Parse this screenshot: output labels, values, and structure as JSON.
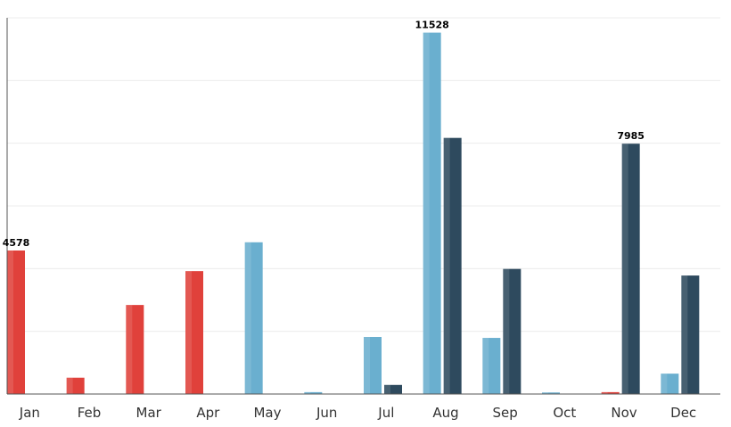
{
  "chart_data": {
    "type": "bar",
    "categories": [
      "Jan",
      "Feb",
      "Mar",
      "Apr",
      "May",
      "Jun",
      "Jul",
      "Aug",
      "Sep",
      "Oct",
      "Nov",
      "Dec"
    ],
    "series": [
      {
        "color": "#e0413b",
        "values": [
          4578,
          520,
          2840,
          3920,
          0,
          0,
          0,
          0,
          0,
          0,
          60,
          0
        ]
      },
      {
        "color": "#6aafcf",
        "values": [
          0,
          0,
          0,
          0,
          4840,
          60,
          1820,
          11528,
          1790,
          50,
          0,
          650
        ]
      },
      {
        "color": "#2e4a5e",
        "values": [
          0,
          0,
          0,
          0,
          0,
          0,
          290,
          8170,
          3990,
          0,
          7985,
          3780
        ]
      }
    ],
    "data_labels": [
      {
        "category": "Jan",
        "series_index": 0,
        "text": "4578"
      },
      {
        "category": "Aug",
        "series_index": 1,
        "text": "11528"
      },
      {
        "category": "Nov",
        "series_index": 2,
        "text": "7985"
      }
    ],
    "ylim": [
      0,
      12000
    ],
    "grid": true,
    "title": "",
    "xlabel": "",
    "ylabel": ""
  }
}
